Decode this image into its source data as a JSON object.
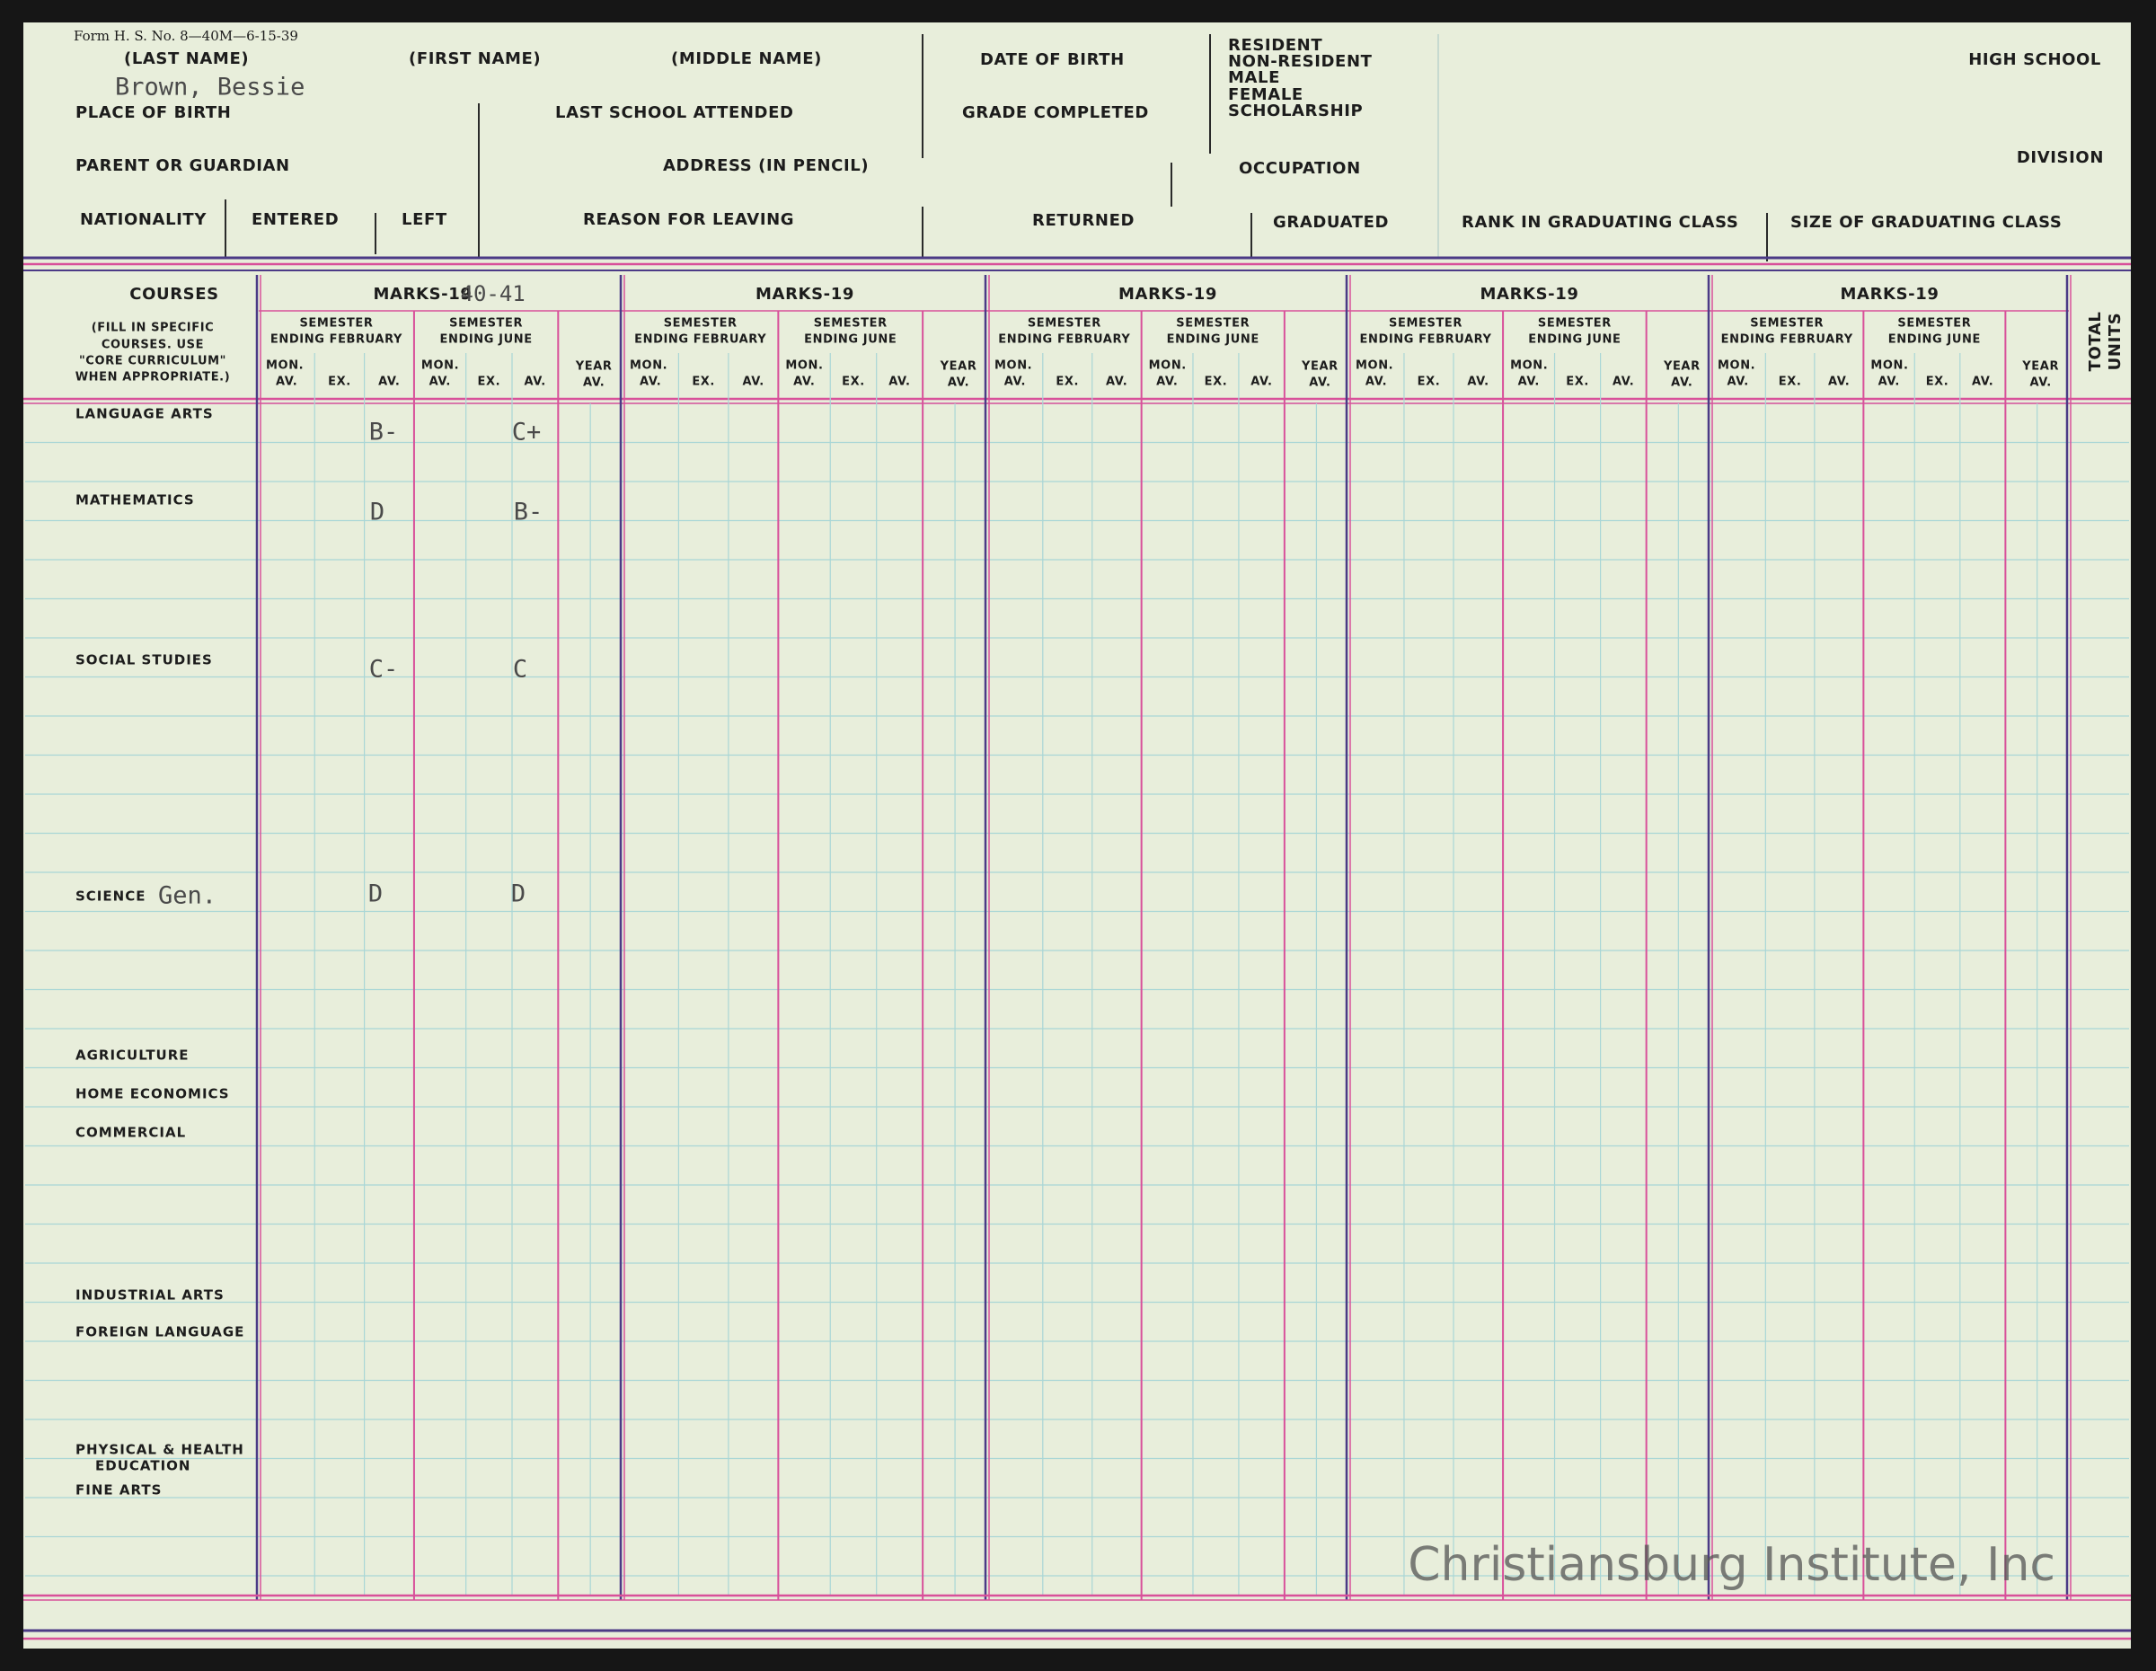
{
  "header": {
    "form_number": "Form H. S. No. 8—40M—6-15-39",
    "last_name": "(LAST NAME)",
    "first_name": "(FIRST NAME)",
    "middle_name": "(MIDDLE NAME)",
    "date_of_birth": "DATE OF BIRTH",
    "status_options": [
      "RESIDENT",
      "NON-RESIDENT",
      "MALE",
      "FEMALE",
      "SCHOLARSHIP"
    ],
    "high_school": "HIGH SCHOOL",
    "student_name": "Brown, Bessie",
    "place_of_birth": "PLACE OF BIRTH",
    "last_school_attended": "LAST SCHOOL ATTENDED",
    "grade_completed": "GRADE COMPLETED",
    "parent_or_guardian": "PARENT OR GUARDIAN",
    "address": "ADDRESS (IN PENCIL)",
    "occupation": "OCCUPATION",
    "division": "DIVISION",
    "nationality": "NATIONALITY",
    "entered": "ENTERED",
    "left": "LEFT",
    "reason_for_leaving": "REASON FOR LEAVING",
    "returned": "RETURNED",
    "graduated": "GRADUATED",
    "rank_in_graduating_class": "RANK IN GRADUATING CLASS",
    "size_of_graduating_class": "SIZE OF GRADUATING CLASS"
  },
  "marks_table": {
    "courses_heading": "COURSES",
    "courses_note": [
      "(FILL IN SPECIFIC",
      "COURSES. USE",
      "\"CORE CURRICULUM\"",
      "WHEN APPROPRIATE.)"
    ],
    "total_units": [
      "TOTAL",
      "UNITS"
    ],
    "blocks": [
      {
        "heading": "MARKS-19",
        "school_year": "40-41",
        "semesters": [
          {
            "title": "SEMESTER",
            "subtitle": "ENDING FEBRUARY",
            "mon": "MON.",
            "mon_av": "AV.",
            "ex": "EX.",
            "av": "AV."
          },
          {
            "title": "SEMESTER",
            "subtitle": "ENDING JUNE",
            "mon": "MON.",
            "mon_av": "AV.",
            "ex": "EX.",
            "av": "AV."
          }
        ],
        "year": "YEAR",
        "year_av": "AV."
      },
      {
        "heading": "MARKS-19",
        "semesters": [
          {
            "title": "SEMESTER",
            "subtitle": "ENDING FEBRUARY",
            "mon": "MON.",
            "mon_av": "AV.",
            "ex": "EX.",
            "av": "AV."
          },
          {
            "title": "SEMESTER",
            "subtitle": "ENDING JUNE",
            "mon": "MON.",
            "mon_av": "AV.",
            "ex": "EX.",
            "av": "AV."
          }
        ],
        "year": "YEAR",
        "year_av": "AV."
      },
      {
        "heading": "MARKS-19",
        "semesters": [
          {
            "title": "SEMESTER",
            "subtitle": "ENDING FEBRUARY",
            "mon": "MON.",
            "mon_av": "AV.",
            "ex": "EX.",
            "av": "AV."
          },
          {
            "title": "SEMESTER",
            "subtitle": "ENDING JUNE",
            "mon": "MON.",
            "mon_av": "AV.",
            "ex": "EX.",
            "av": "AV."
          }
        ],
        "year": "YEAR",
        "year_av": "AV."
      },
      {
        "heading": "MARKS-19",
        "semesters": [
          {
            "title": "SEMESTER",
            "subtitle": "ENDING FEBRUARY",
            "mon": "MON.",
            "mon_av": "AV.",
            "ex": "EX.",
            "av": "AV."
          },
          {
            "title": "SEMESTER",
            "subtitle": "ENDING JUNE",
            "mon": "MON.",
            "mon_av": "AV.",
            "ex": "EX.",
            "av": "AV."
          }
        ],
        "year": "YEAR",
        "year_av": "AV."
      },
      {
        "heading": "MARKS-19",
        "semesters": [
          {
            "title": "SEMESTER",
            "subtitle": "ENDING FEBRUARY",
            "mon": "MON.",
            "mon_av": "AV.",
            "ex": "EX.",
            "av": "AV."
          },
          {
            "title": "SEMESTER",
            "subtitle": "ENDING JUNE",
            "mon": "MON.",
            "mon_av": "AV.",
            "ex": "EX.",
            "av": "AV."
          }
        ],
        "year": "YEAR",
        "year_av": "AV."
      }
    ],
    "courses": [
      {
        "name": "LANGUAGE ARTS",
        "feb_av": "B-",
        "june_av": "C+"
      },
      {
        "name": "MATHEMATICS",
        "feb_av": "D",
        "june_av": "B-"
      },
      {
        "name": "SOCIAL STUDIES",
        "feb_av": "C-",
        "june_av": "C"
      },
      {
        "name": "SCIENCE",
        "specific": "Gen.",
        "feb_av": "D",
        "june_av": "D"
      },
      {
        "name": "AGRICULTURE"
      },
      {
        "name": "HOME ECONOMICS"
      },
      {
        "name": "COMMERCIAL"
      },
      {
        "name": "INDUSTRIAL ARTS"
      },
      {
        "name": "FOREIGN LANGUAGE"
      },
      {
        "name": "PHYSICAL & HEALTH",
        "name_line2": "EDUCATION"
      },
      {
        "name": "FINE ARTS"
      }
    ]
  },
  "watermark": "Christiansburg Institute, Inc"
}
